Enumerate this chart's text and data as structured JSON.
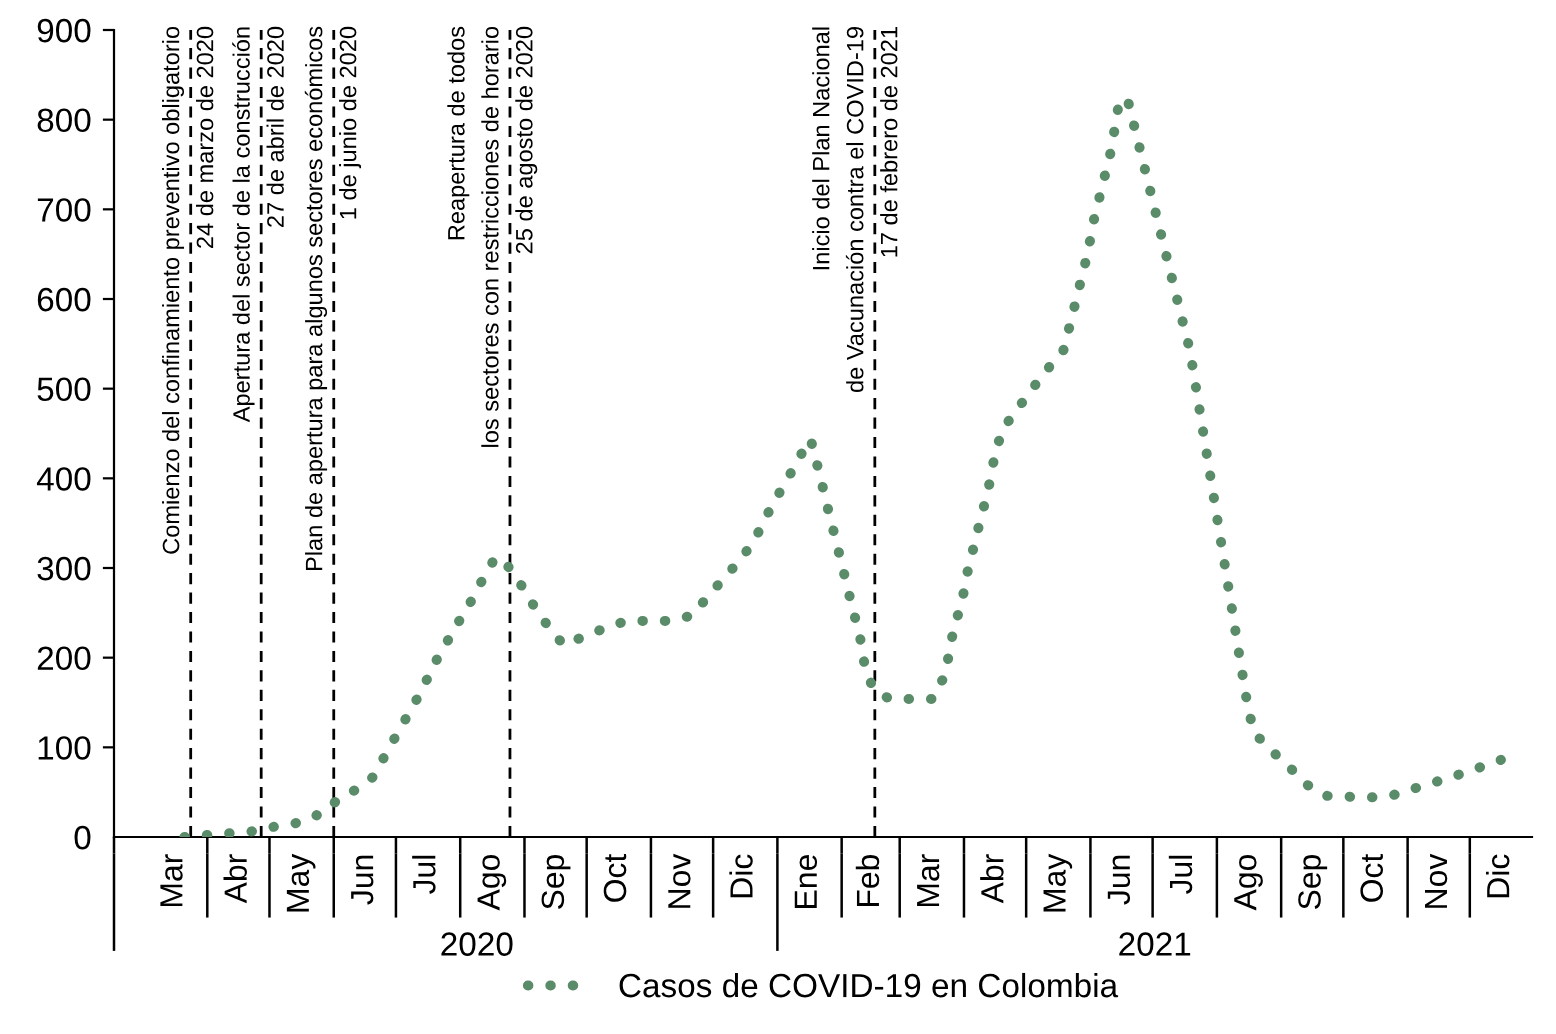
{
  "chart_data": {
    "type": "line",
    "line_style": "dotted",
    "legend": "bottom",
    "x": [
      "2020-03-21",
      "2020-03-31",
      "2020-04-11",
      "2020-04-22",
      "2020-05-02",
      "2020-05-13",
      "2020-05-23",
      "2020-06-01",
      "2020-06-11",
      "2020-06-20",
      "2020-06-26",
      "2020-07-02",
      "2020-07-08",
      "2020-07-14",
      "2020-07-19",
      "2020-07-25",
      "2020-07-31",
      "2020-08-06",
      "2020-08-12",
      "2020-08-18",
      "2020-08-24",
      "2020-08-31",
      "2020-09-06",
      "2020-09-13",
      "2020-09-20",
      "2020-09-30",
      "2020-10-10",
      "2020-10-20",
      "2020-10-31",
      "2020-11-10",
      "2020-11-21",
      "2020-11-28",
      "2020-12-06",
      "2020-12-14",
      "2020-12-21",
      "2020-12-26",
      "2021-01-01",
      "2021-01-07",
      "2021-01-13",
      "2021-01-17",
      "2021-01-20",
      "2021-01-23",
      "2021-01-26",
      "2021-01-29",
      "2021-02-01",
      "2021-02-04",
      "2021-02-07",
      "2021-02-10",
      "2021-02-12",
      "2021-02-16",
      "2021-02-24",
      "2021-03-07",
      "2021-03-17",
      "2021-03-22",
      "2021-03-25",
      "2021-03-27",
      "2021-03-31",
      "2021-04-02",
      "2021-04-05",
      "2021-04-08",
      "2021-04-11",
      "2021-04-14",
      "2021-04-16",
      "2021-04-20",
      "2021-04-27",
      "2021-05-04",
      "2021-05-11",
      "2021-05-19",
      "2021-05-22",
      "2021-05-25",
      "2021-05-28",
      "2021-05-31",
      "2021-06-02",
      "2021-06-05",
      "2021-06-08",
      "2021-06-11",
      "2021-06-13",
      "2021-06-15",
      "2021-06-19",
      "2021-06-22",
      "2021-06-25",
      "2021-06-28",
      "2021-07-01",
      "2021-07-04",
      "2021-07-07",
      "2021-07-10",
      "2021-07-13",
      "2021-07-16",
      "2021-07-19",
      "2021-07-21",
      "2021-07-23",
      "2021-07-25",
      "2021-07-27",
      "2021-07-29",
      "2021-07-31",
      "2021-08-02",
      "2021-08-04",
      "2021-08-06",
      "2021-08-08",
      "2021-08-10",
      "2021-08-12",
      "2021-08-14",
      "2021-08-16",
      "2021-08-19",
      "2021-08-27",
      "2021-09-05",
      "2021-09-13",
      "2021-09-22",
      "2021-10-03",
      "2021-10-13",
      "2021-10-24",
      "2021-11-04",
      "2021-11-14",
      "2021-11-25",
      "2021-12-05",
      "2021-12-16"
    ],
    "series": [
      {
        "name": "Casos de COVID-19 en Colombia",
        "color": "#5b8c6a",
        "values": [
          0,
          2,
          4,
          6,
          11,
          15,
          23,
          38,
          52,
          67,
          92,
          117,
          141,
          166,
          191,
          215,
          239,
          262,
          288,
          312,
          302,
          279,
          256,
          233,
          214,
          224,
          233,
          241,
          241,
          241,
          247,
          267,
          288,
          309,
          331,
          355,
          380,
          404,
          429,
          444,
          417,
          389,
          360,
          333,
          305,
          276,
          249,
          221,
          193,
          166,
          154,
          154,
          154,
          177,
          205,
          233,
          261,
          289,
          317,
          345,
          372,
          401,
          429,
          456,
          478,
          500,
          521,
          543,
          570,
          598,
          626,
          654,
          682,
          710,
          738,
          766,
          794,
          822,
          822,
          794,
          766,
          738,
          710,
          682,
          654,
          626,
          598,
          570,
          543,
          514,
          486,
          457,
          429,
          400,
          372,
          343,
          315,
          286,
          258,
          229,
          200,
          172,
          144,
          116,
          97,
          78,
          59,
          46,
          45,
          44,
          46,
          54,
          61,
          69,
          77,
          86
        ]
      }
    ],
    "xlim": [
      "2020-02-16",
      "2021-12-31"
    ],
    "xticks": [
      {
        "value": "2020-03-16",
        "label": "Mar"
      },
      {
        "value": "2020-04-01",
        "label": null
      },
      {
        "value": "2020-04-16",
        "label": "Abr"
      },
      {
        "value": "2020-05-01",
        "label": null
      },
      {
        "value": "2020-05-16",
        "label": "May"
      },
      {
        "value": "2020-06-01",
        "label": null
      },
      {
        "value": "2020-06-16",
        "label": "Jun"
      },
      {
        "value": "2020-07-01",
        "label": null
      },
      {
        "value": "2020-07-16",
        "label": "Jul"
      },
      {
        "value": "2020-08-01",
        "label": null
      },
      {
        "value": "2020-08-16",
        "label": "Ago"
      },
      {
        "value": "2020-09-01",
        "label": null
      },
      {
        "value": "2020-09-16",
        "label": "Sep"
      },
      {
        "value": "2020-10-01",
        "label": null
      },
      {
        "value": "2020-10-16",
        "label": "Oct"
      },
      {
        "value": "2020-11-01",
        "label": null
      },
      {
        "value": "2020-11-16",
        "label": "Nov"
      },
      {
        "value": "2020-12-01",
        "label": null
      },
      {
        "value": "2020-12-16",
        "label": "Dic"
      },
      {
        "value": "2021-01-16",
        "label": "Ene"
      },
      {
        "value": "2021-02-01",
        "label": null
      },
      {
        "value": "2021-02-15",
        "label": "Feb"
      },
      {
        "value": "2021-03-01",
        "label": null
      },
      {
        "value": "2021-03-16",
        "label": "Mar"
      },
      {
        "value": "2021-04-01",
        "label": null
      },
      {
        "value": "2021-04-16",
        "label": "Abr"
      },
      {
        "value": "2021-05-01",
        "label": null
      },
      {
        "value": "2021-05-16",
        "label": "May"
      },
      {
        "value": "2021-06-01",
        "label": null
      },
      {
        "value": "2021-06-16",
        "label": "Jun"
      },
      {
        "value": "2021-07-01",
        "label": null
      },
      {
        "value": "2021-07-16",
        "label": "Jul"
      },
      {
        "value": "2021-08-01",
        "label": null
      },
      {
        "value": "2021-08-16",
        "label": "Ago"
      },
      {
        "value": "2021-09-01",
        "label": null
      },
      {
        "value": "2021-09-16",
        "label": "Sep"
      },
      {
        "value": "2021-10-01",
        "label": null
      },
      {
        "value": "2021-10-16",
        "label": "Oct"
      },
      {
        "value": "2021-11-01",
        "label": null
      },
      {
        "value": "2021-11-16",
        "label": "Nov"
      },
      {
        "value": "2021-12-01",
        "label": null
      },
      {
        "value": "2021-12-16",
        "label": "Dic"
      }
    ],
    "x2lim": [
      "2020-02-16",
      "2021-12-31"
    ],
    "x2ticks": [
      {
        "value": "2020-02-16",
        "label": null
      },
      {
        "value": "2020-08-09",
        "label": "2020"
      },
      {
        "value": "2021-01-01",
        "label": null
      },
      {
        "value": "2021-07-02",
        "label": "2021"
      }
    ],
    "ylim": [
      0,
      900
    ],
    "yticks": [
      0,
      100,
      200,
      300,
      400,
      500,
      600,
      700,
      800,
      900
    ],
    "ref_lines": [
      {
        "axis": "x",
        "value": "2020-03-24",
        "label": "Comienzo del confinamiento preventivo obligatorio\n24 de marzo de 2020",
        "color": "#000000",
        "line_style": "dashed"
      },
      {
        "axis": "x",
        "value": "2020-04-27",
        "label": "Apertura del sector de la construcción\n27 de abril de 2020",
        "color": "#000000",
        "line_style": "dashed"
      },
      {
        "axis": "x",
        "value": "2020-06-01",
        "label": "Plan de apertura para algunos sectores económicos\n1 de junio de 2020",
        "color": "#000000",
        "line_style": "dashed"
      },
      {
        "axis": "x",
        "value": "2020-08-25",
        "label": "Reapertura de todos\nlos sectores con restricciones de horario\n25 de agosto de 2020",
        "color": "#000000",
        "line_style": "dashed"
      },
      {
        "axis": "x",
        "value": "2021-02-17",
        "label": "Inicio del Plan Nacional\nde Vacunación contra el COVID-19\n17 de febrero de 2021",
        "color": "#000000",
        "line_style": "dashed"
      }
    ]
  }
}
